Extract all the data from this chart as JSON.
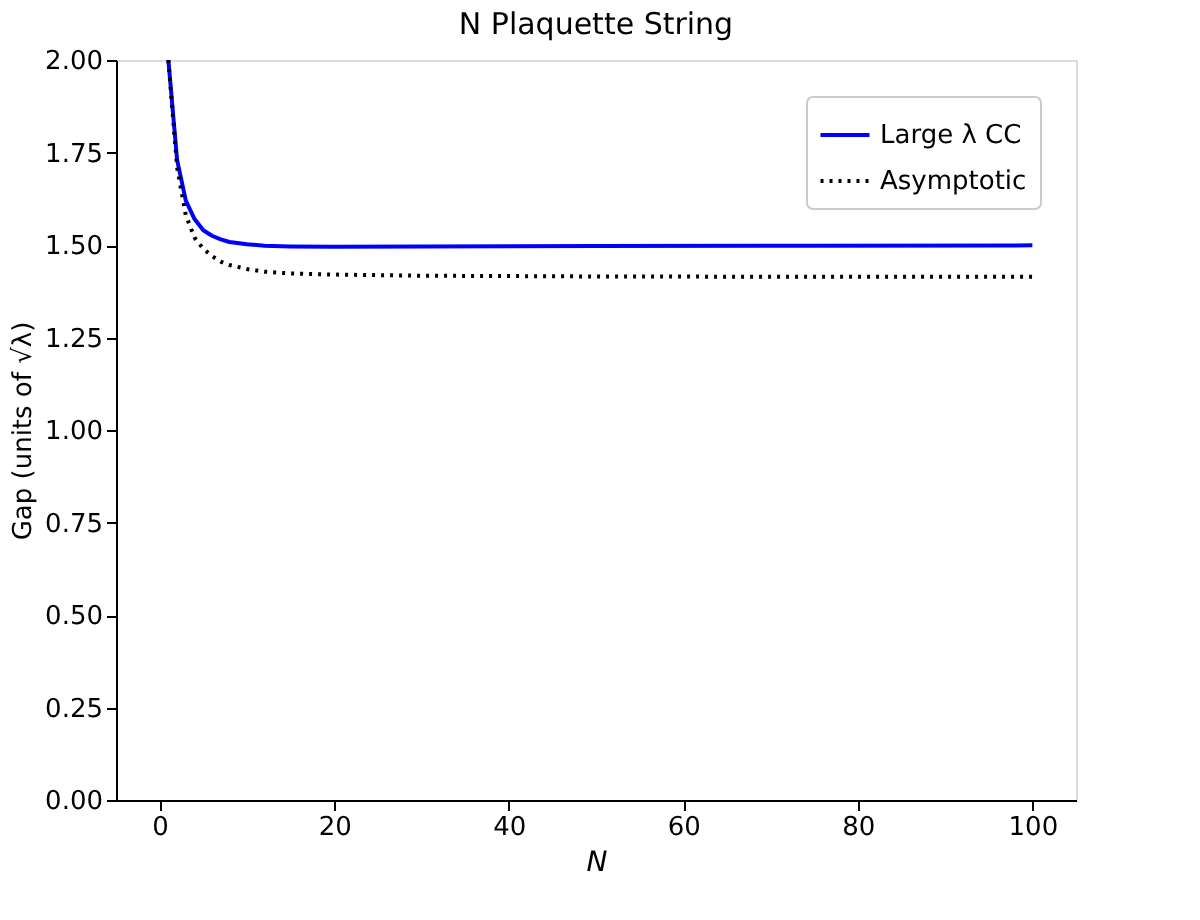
{
  "chart_data": {
    "type": "line",
    "title": "N Plaquette String",
    "xlabel": "N",
    "ylabel": "Gap (units of √λ)",
    "xlim": [
      -5,
      105
    ],
    "xticks": [
      0,
      20,
      40,
      60,
      80,
      100
    ],
    "ylim": [
      0,
      2
    ],
    "yticks": [
      {
        "value": 0,
        "label": "0.00"
      },
      {
        "value": 0.25,
        "label": "0.25"
      },
      {
        "value": 0.5,
        "label": "0.50"
      },
      {
        "value": 0.75,
        "label": "0.75"
      },
      {
        "value": 1,
        "label": "1.00"
      },
      {
        "value": 1.25,
        "label": "1.25"
      },
      {
        "value": 1.5,
        "label": "1.50"
      },
      {
        "value": 1.75,
        "label": "1.75"
      },
      {
        "value": 2,
        "label": "2.00"
      }
    ],
    "grid": false,
    "legend": "top right",
    "marker": "none",
    "series": [
      {
        "name": "Large λ CC",
        "color": "#0000ff",
        "line_style": "solid",
        "x": [
          1,
          2,
          3,
          4,
          5,
          6,
          7,
          8,
          10,
          12,
          15,
          20,
          30,
          50,
          75,
          100
        ],
        "values": [
          2.0,
          1.73,
          1.62,
          1.57,
          1.54,
          1.525,
          1.515,
          1.508,
          1.502,
          1.498,
          1.496,
          1.495,
          1.496,
          1.497,
          1.498,
          1.499
        ]
      },
      {
        "name": "Asymptotic",
        "color": "#000000",
        "line_style": "dotted",
        "x": [
          1,
          2,
          3,
          4,
          5,
          6,
          7,
          8,
          10,
          12,
          15,
          20,
          30,
          50,
          75,
          100
        ],
        "values": [
          2.0,
          1.71,
          1.58,
          1.52,
          1.49,
          1.47,
          1.455,
          1.446,
          1.435,
          1.428,
          1.423,
          1.42,
          1.417,
          1.415,
          1.414,
          1.414
        ]
      }
    ]
  }
}
